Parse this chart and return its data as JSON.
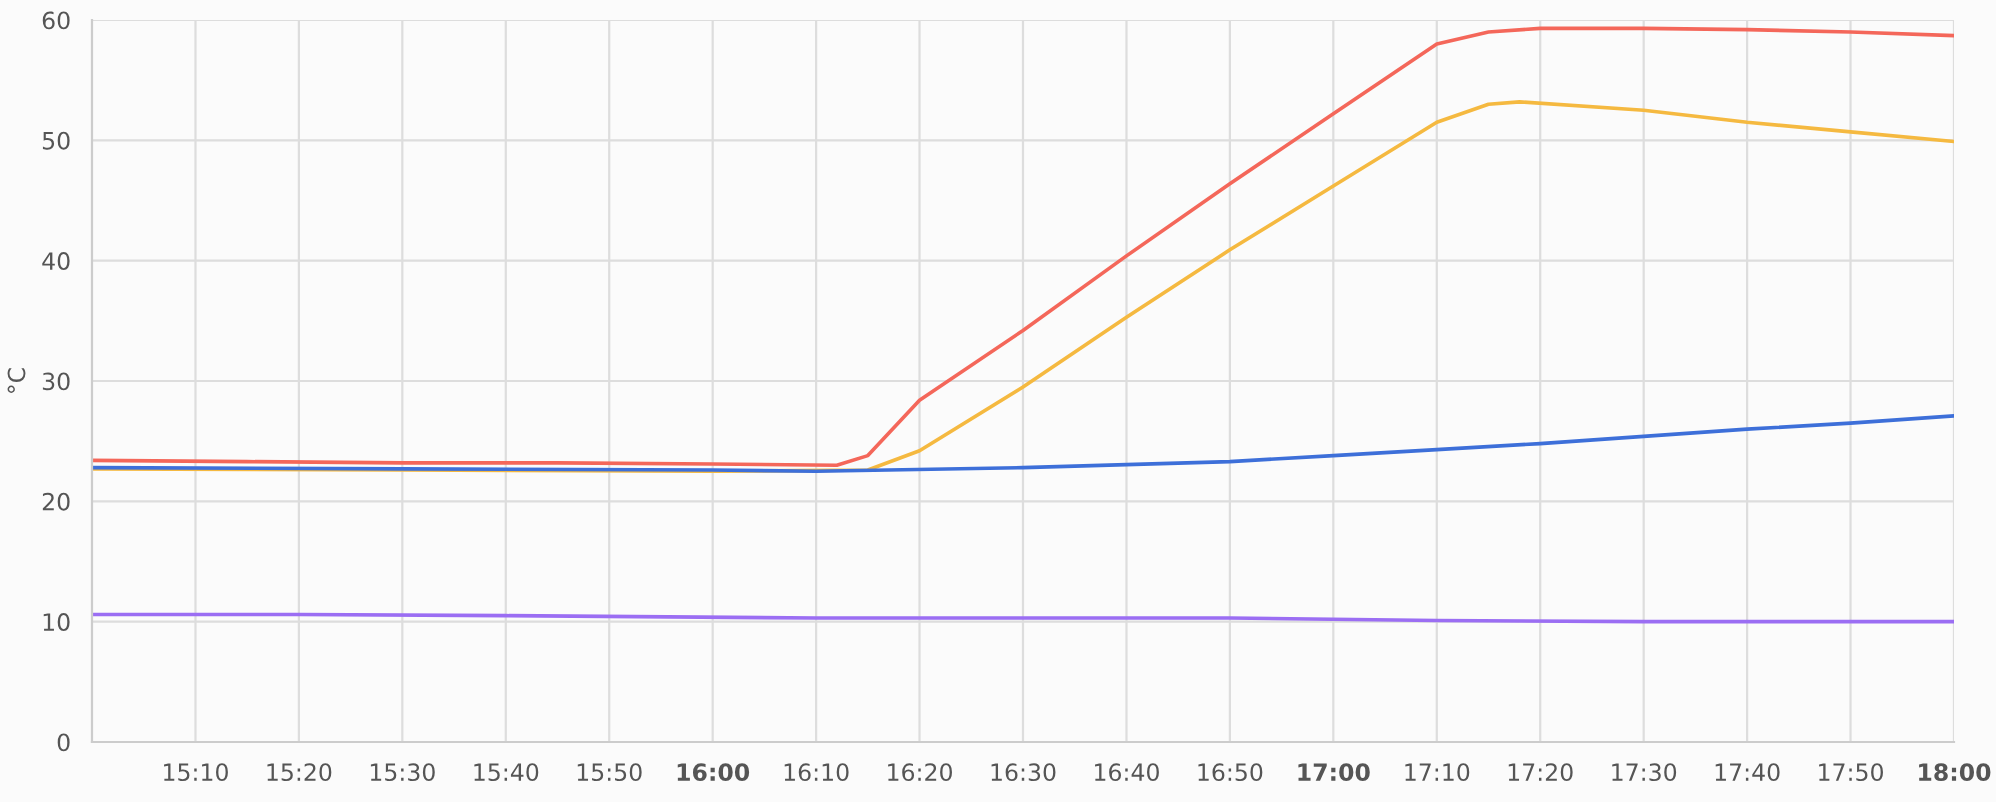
{
  "chart_data": {
    "type": "line",
    "ylabel": "°C",
    "xlim": [
      15.0,
      18.0
    ],
    "ylim": [
      0,
      60
    ],
    "yticks": [
      0,
      10,
      20,
      30,
      40,
      50,
      60
    ],
    "xticks": [
      {
        "value": 15.1667,
        "label": "15:10"
      },
      {
        "value": 15.3333,
        "label": "15:20"
      },
      {
        "value": 15.5,
        "label": "15:30"
      },
      {
        "value": 15.6667,
        "label": "15:40"
      },
      {
        "value": 15.8333,
        "label": "15:50"
      },
      {
        "value": 16,
        "label": "16:00"
      },
      {
        "value": 16.1667,
        "label": "16:10"
      },
      {
        "value": 16.3333,
        "label": "16:20"
      },
      {
        "value": 16.5,
        "label": "16:30"
      },
      {
        "value": 16.6667,
        "label": "16:40"
      },
      {
        "value": 16.8333,
        "label": "16:50"
      },
      {
        "value": 17,
        "label": "17:00"
      },
      {
        "value": 17.1667,
        "label": "17:10"
      },
      {
        "value": 17.3333,
        "label": "17:20"
      },
      {
        "value": 17.5,
        "label": "17:30"
      },
      {
        "value": 17.6667,
        "label": "17:40"
      },
      {
        "value": 17.8333,
        "label": "17:50"
      },
      {
        "value": 18,
        "label": "18:00"
      }
    ],
    "grid": true,
    "legend": false,
    "marker": "none",
    "line_style": "solid",
    "series": [
      {
        "color": "#f4675a",
        "x": [
          15.0,
          15.25,
          15.5,
          15.75,
          16.0,
          16.2,
          16.25,
          16.3333,
          16.5,
          16.6667,
          16.8333,
          17.0,
          17.1667,
          17.25,
          17.3333,
          17.5,
          17.6667,
          17.8333,
          18.0
        ],
        "values": [
          23.4,
          23.3,
          23.2,
          23.2,
          23.1,
          23.0,
          23.8,
          28.4,
          34.2,
          40.4,
          46.4,
          52.2,
          58.0,
          59.0,
          59.3,
          59.3,
          59.2,
          59.0,
          58.7
        ]
      },
      {
        "color": "#f5b940",
        "x": [
          15.0,
          15.5,
          16.0,
          16.25,
          16.3333,
          16.5,
          16.6667,
          16.8333,
          17.0,
          17.1667,
          17.25,
          17.3,
          17.5,
          17.6667,
          17.8333,
          18.0
        ],
        "values": [
          22.7,
          22.6,
          22.5,
          22.6,
          24.2,
          29.5,
          35.3,
          40.9,
          46.2,
          51.5,
          53.0,
          53.2,
          52.5,
          51.5,
          50.7,
          49.9
        ]
      },
      {
        "color": "#3d6fd9",
        "x": [
          15.0,
          15.5,
          16.0,
          16.1667,
          16.5,
          16.8333,
          17.0,
          17.1667,
          17.3333,
          17.5,
          17.6667,
          17.8333,
          18.0
        ],
        "values": [
          22.8,
          22.7,
          22.6,
          22.5,
          22.8,
          23.3,
          23.8,
          24.3,
          24.8,
          25.4,
          26.0,
          26.5,
          27.1
        ]
      },
      {
        "color": "#9b6ef3",
        "x": [
          15.0,
          15.3333,
          15.6667,
          16.1667,
          16.8333,
          17.1667,
          17.5,
          18.0
        ],
        "values": [
          10.6,
          10.6,
          10.5,
          10.3,
          10.3,
          10.1,
          10.0,
          10.0
        ]
      }
    ]
  }
}
